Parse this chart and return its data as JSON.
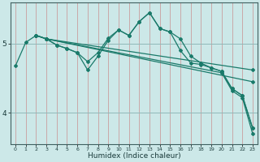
{
  "xlabel": "Humidex (Indice chaleur)",
  "ylabel": "",
  "bg_color": "#cce8e8",
  "line_color": "#1a7a6a",
  "xlim": [
    -0.5,
    23.5
  ],
  "ylim": [
    3.55,
    5.6
  ],
  "yticks": [
    4,
    5
  ],
  "xticks": [
    0,
    1,
    2,
    3,
    4,
    5,
    6,
    7,
    8,
    9,
    10,
    11,
    12,
    13,
    14,
    15,
    16,
    17,
    18,
    19,
    20,
    21,
    22,
    23
  ],
  "curves": [
    {
      "x": [
        0,
        1,
        2,
        3,
        4,
        5,
        6,
        7,
        8,
        9,
        10,
        11,
        12,
        13,
        14,
        15,
        16,
        17,
        18,
        19,
        20,
        21,
        22,
        23
      ],
      "y": [
        4.68,
        5.02,
        5.12,
        5.07,
        4.98,
        4.93,
        4.87,
        4.74,
        4.87,
        5.08,
        5.2,
        5.12,
        5.32,
        5.45,
        5.22,
        5.17,
        5.07,
        4.82,
        4.72,
        4.65,
        4.6,
        4.35,
        4.25,
        3.78
      ]
    },
    {
      "x": [
        3,
        4,
        5,
        6,
        7,
        8,
        9,
        10,
        11,
        12,
        13,
        14,
        15,
        16,
        17,
        18,
        19,
        20,
        21,
        22,
        23
      ],
      "y": [
        5.07,
        4.98,
        4.93,
        4.87,
        4.62,
        4.82,
        5.05,
        5.2,
        5.12,
        5.32,
        5.45,
        5.22,
        5.17,
        4.9,
        4.72,
        4.7,
        4.65,
        4.6,
        4.35,
        4.25,
        3.78
      ]
    },
    {
      "x": [
        2,
        3,
        23
      ],
      "y": [
        5.12,
        5.07,
        4.62
      ]
    },
    {
      "x": [
        2,
        3,
        23
      ],
      "y": [
        5.12,
        5.07,
        4.45
      ]
    },
    {
      "x": [
        2,
        3,
        20,
        21,
        22,
        23
      ],
      "y": [
        5.12,
        5.07,
        4.58,
        4.32,
        4.22,
        3.7
      ]
    }
  ]
}
